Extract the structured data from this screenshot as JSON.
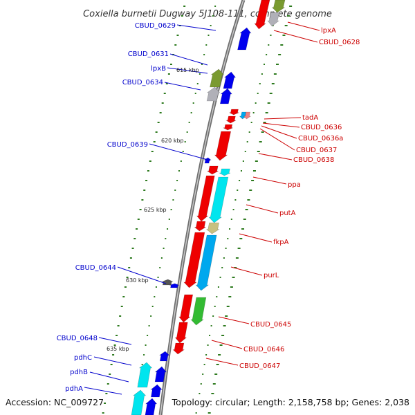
{
  "title": "Coxiella burnetii Dugway 5J108-111, complete genome",
  "footer": {
    "accession": "Accession: NC_009727",
    "summary": "Topology: circular; Length: 2,158,758 bp; Genes: 2,038"
  },
  "colors": {
    "reverse_label": "#0000cc",
    "forward_label": "#cc0000",
    "backbone": "#808080",
    "tick": "#2d7a1e"
  },
  "kbp_ticks": [
    "615 kbp",
    "620 kbp",
    "625 kbp",
    "630 kbp",
    "635 kbp"
  ],
  "reverse_labels": [
    "CBUD_0629",
    "CBUD_0631",
    "lpxB",
    "CBUD_0634",
    "CBUD_0639",
    "CBUD_0644",
    "CBUD_0648",
    "pdhC",
    "pdhB",
    "pdhA"
  ],
  "forward_labels": [
    "lpxA",
    "CBUD_0628",
    "tadA",
    "CBUD_0636",
    "CBUD_0636a",
    "CBUD_0637",
    "CBUD_0638",
    "ppa",
    "putA",
    "fkpA",
    "purL",
    "CBUD_0645",
    "CBUD_0646",
    "CBUD_0647"
  ],
  "feature_colors": {
    "red_gene": "#ee0000",
    "blue_gene": "#0000ee",
    "cyan_gene": "#00e5ee",
    "sky_gene": "#00a8ee",
    "olive_gene": "#7a9a30",
    "green_gene": "#33bb33",
    "khaki_gene": "#c8c080",
    "grey_gene": "#b0b0b8",
    "dark_gene": "#555555",
    "pink_gene": "#f08080"
  }
}
